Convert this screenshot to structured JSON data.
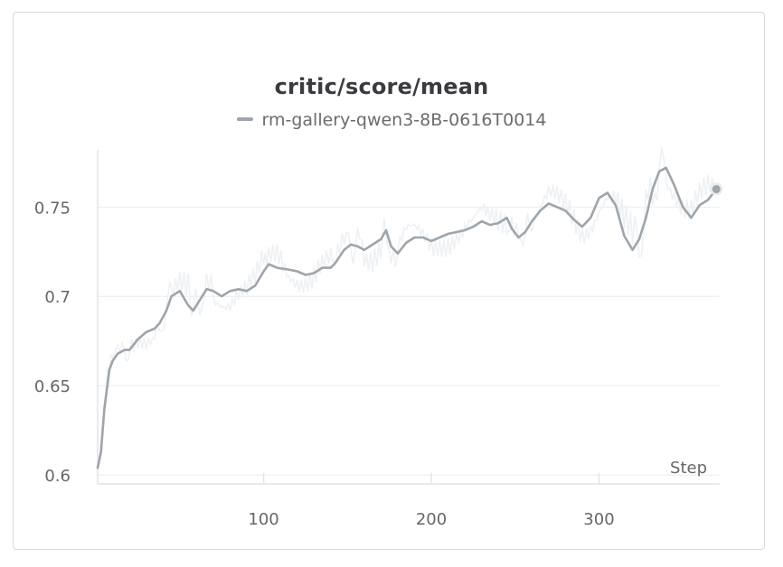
{
  "chart_data": {
    "type": "line",
    "title": "critic/score/mean",
    "xlabel": "Step",
    "ylabel": "",
    "xlim": [
      1,
      372
    ],
    "ylim": [
      0.595,
      0.782
    ],
    "xticks": [
      100,
      200,
      300
    ],
    "yticks": [
      0.6,
      0.65,
      0.7,
      0.75
    ],
    "ytick_labels": [
      "0.6",
      "0.65",
      "0.7",
      "0.75"
    ],
    "xtick_labels": [
      "100",
      "200",
      "300"
    ],
    "grid": true,
    "legend": "top-center",
    "series": [
      {
        "name": "rm-gallery-qwen3-8B-0616T0014",
        "color": "#9ea5ab",
        "raw_color": "#eef1f4",
        "x": [
          1,
          3,
          5,
          8,
          10,
          13,
          17,
          20,
          25,
          30,
          35,
          38,
          42,
          45,
          50,
          55,
          58,
          62,
          66,
          70,
          75,
          80,
          85,
          90,
          95,
          100,
          103,
          108,
          115,
          120,
          125,
          130,
          135,
          140,
          143,
          148,
          152,
          156,
          160,
          165,
          170,
          173,
          176,
          180,
          185,
          190,
          195,
          200,
          205,
          210,
          215,
          220,
          225,
          230,
          235,
          240,
          245,
          248,
          252,
          256,
          260,
          265,
          270,
          275,
          280,
          285,
          290,
          295,
          300,
          305,
          310,
          315,
          320,
          324,
          328,
          332,
          336,
          340,
          345,
          350,
          355,
          360,
          365,
          370
        ],
        "values": [
          0.604,
          0.613,
          0.637,
          0.659,
          0.664,
          0.668,
          0.67,
          0.67,
          0.676,
          0.68,
          0.682,
          0.685,
          0.692,
          0.7,
          0.703,
          0.695,
          0.692,
          0.698,
          0.704,
          0.703,
          0.7,
          0.703,
          0.704,
          0.703,
          0.706,
          0.714,
          0.718,
          0.716,
          0.715,
          0.714,
          0.712,
          0.713,
          0.716,
          0.716,
          0.719,
          0.726,
          0.729,
          0.728,
          0.726,
          0.729,
          0.732,
          0.737,
          0.728,
          0.724,
          0.73,
          0.733,
          0.733,
          0.731,
          0.733,
          0.735,
          0.736,
          0.737,
          0.739,
          0.742,
          0.74,
          0.741,
          0.744,
          0.738,
          0.733,
          0.736,
          0.742,
          0.748,
          0.752,
          0.75,
          0.748,
          0.743,
          0.739,
          0.744,
          0.755,
          0.758,
          0.751,
          0.734,
          0.726,
          0.732,
          0.744,
          0.76,
          0.77,
          0.772,
          0.762,
          0.75,
          0.744,
          0.751,
          0.754,
          0.76
        ],
        "noise": [
          0.0,
          0.004,
          0.008,
          0.01,
          0.006,
          0.009,
          0.005,
          0.011,
          0.008,
          0.012,
          0.009,
          0.014,
          0.01,
          0.016,
          0.013,
          0.018,
          0.011,
          0.015,
          0.012,
          0.014,
          0.01,
          0.016,
          0.011,
          0.013,
          0.012,
          0.015,
          0.011,
          0.014,
          0.01,
          0.013,
          0.012,
          0.015,
          0.011,
          0.013,
          0.012,
          0.014,
          0.011,
          0.013,
          0.012,
          0.016,
          0.013,
          0.012,
          0.014,
          0.011,
          0.015,
          0.013,
          0.012,
          0.014,
          0.011,
          0.013,
          0.012,
          0.014,
          0.011,
          0.013,
          0.012,
          0.016,
          0.013,
          0.012,
          0.014,
          0.013,
          0.015,
          0.012,
          0.014,
          0.013,
          0.012,
          0.015,
          0.014,
          0.013,
          0.016,
          0.014,
          0.018,
          0.02,
          0.019,
          0.017,
          0.016,
          0.015,
          0.013,
          0.014,
          0.016,
          0.015,
          0.014,
          0.013,
          0.016,
          0.012
        ]
      }
    ]
  }
}
